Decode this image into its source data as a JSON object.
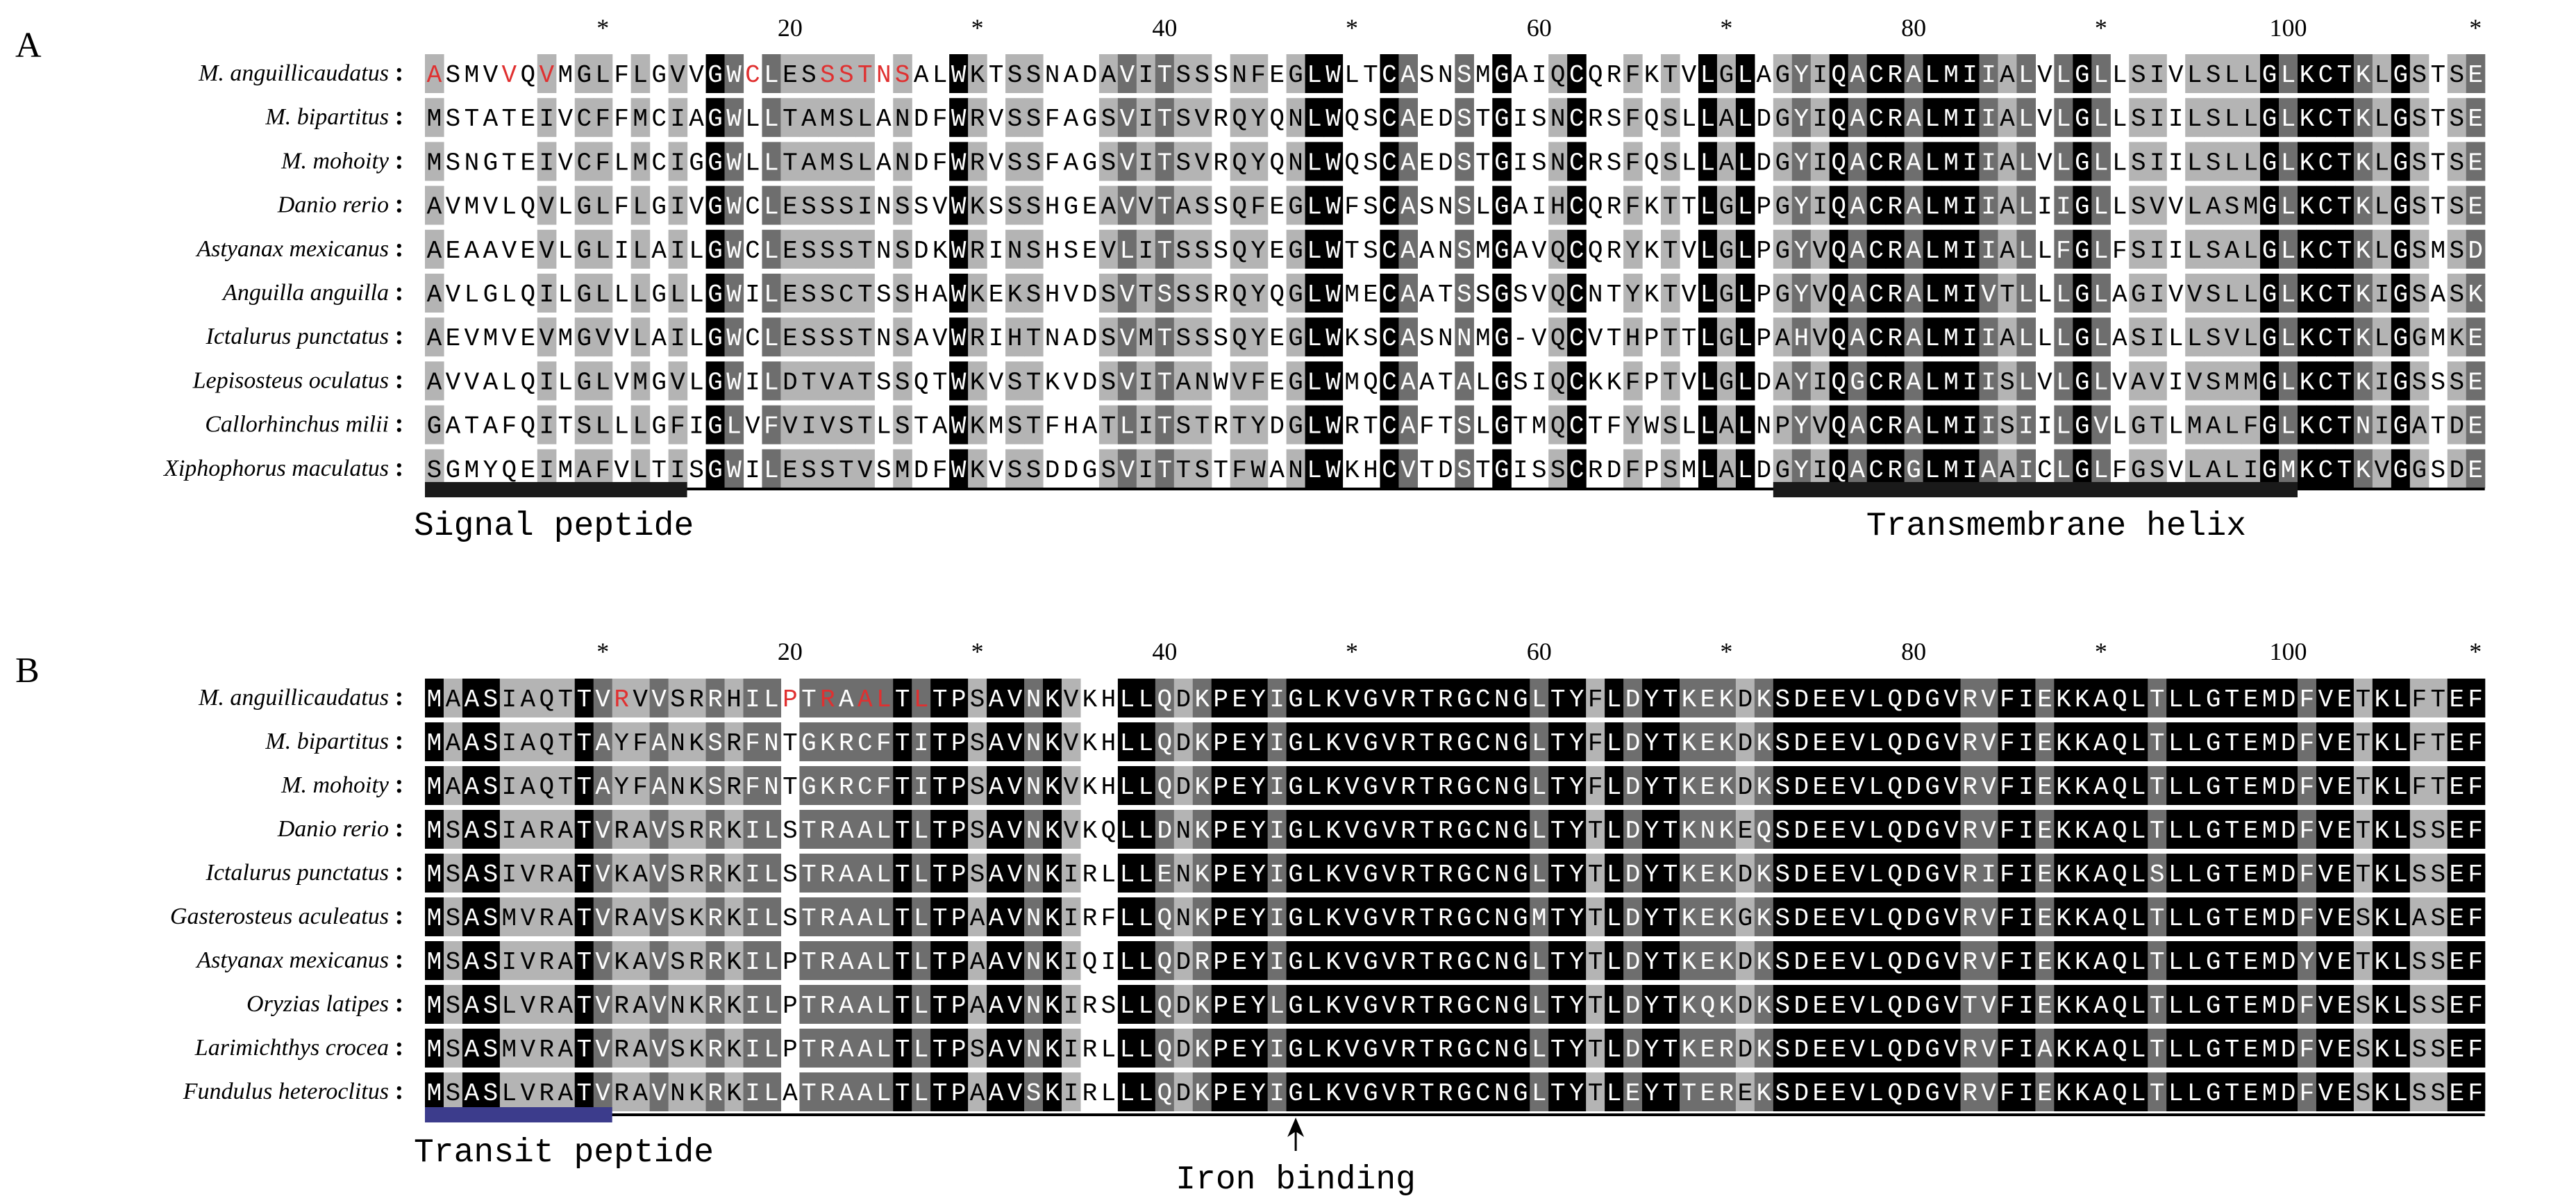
{
  "panels": [
    {
      "id": "A",
      "label": "A",
      "ruler": [
        "*",
        "20",
        "*",
        "40",
        "*",
        "60",
        "*",
        "80",
        "*",
        "100",
        "*"
      ],
      "rows": [
        {
          "species": "M. anguillicaudatus",
          "seq": "ASMVVQVMGLFLGVVGWCLESSSTNSALWKTSSNADAVITSSSNFEGLWLTCASNSMGAIQCQRFKTVLGLAGYIQACRALMIIALVLGLLSIVLSLLGLKCTKLGSTSE",
          "red": [
            0,
            4,
            6,
            17,
            21,
            22,
            23,
            24,
            25
          ]
        },
        {
          "species": "M. bipartitus",
          "seq": "MSTATEIVCFFMCIAGWLLTAMSLANDFWRVSSFAGSVITSVRQYQNLWQSCAEDSTGISNCRSFQSLLALDGYIQACRALMIIALVLGLLSIILSLLGLKCTKLGSTSE",
          "red": []
        },
        {
          "species": "M. mohoity",
          "seq": "MSNGTEIVCFLMCIGGWLLTAMSLANDFWRVSSFAGSVITSVRQYQNLWQSCAEDSTGISNCRSFQSLLALDGYIQACRALMIIALVLGLLSIILSLLGLKCTKLGSTSE",
          "red": []
        },
        {
          "species": "Danio rerio",
          "seq": "AVMVLQVLGLFLGIVGWCLESSSINSSVWKSSSHGEAVVTASSQFEGLWFSCASNSLGAIHCQRFKTTLGLPGYIQACRALMIIALIIGLLSVVLASMGLKCTKLGSTSE",
          "red": []
        },
        {
          "species": "Astyanax mexicanus",
          "seq": "AEAAVEVLGLILAILGWCLESSSTNSDKWRINSHSEVLITSSSQYEGLWTSCAANSMGAVQCQRYKTVLGLPGYVQACRALMIIALLFGLFSIILSALGLKCTKLGSMSD",
          "red": []
        },
        {
          "species": "Anguilla anguilla",
          "seq": "AVLGLQILGLLLGLLGWILESSCTSSHAWKEKSHVDSVTSSSRQYQGLWMECAATSSGSVQCNTYKTVLGLPGYVQACRALMIVTLLLGLAGIVVSLLGLKCTKIGSASK",
          "red": []
        },
        {
          "species": "Ictalurus punctatus",
          "seq": "AEVMVEVMGVVLAILGWCLESSSTNSAVWRIHTNADSVMTSSSQYEGLWKSCASNNMG-VQCVTHPTTLGLPAHVQACRALMIIALLLGLASILLSVLGLKCTKLGGMKE",
          "red": []
        },
        {
          "species": "Lepisosteus oculatus",
          "seq": "AVVALQILGLVMGVLGWILDTVATSSQTWKVSTKVDSVITANWVFEGLWMQCAATALGSIQCKKFPTVLGLDAYIQGCRALMIISLVLGLVAVIVSMMGLKCTKIGSSSE",
          "red": []
        },
        {
          "species": "Callorhinchus milii",
          "seq": "GATAFQITSLLLGFIGLVFVIVSTLSTAWKMSTFHATLITSTRTYDGLWRTCAFTSLGTMQCTFYWSLLALNPYVQACRALMIISIILGVLGTLMALFGLKCTNIGATDE",
          "red": []
        },
        {
          "species": "Xiphophorus maculatus",
          "seq": "SGMYQEIMAFVLTISGWILESSTVSMDFWKVSSDDGSVITTSTFWANLWKHCVTDSTGISSCRDFPSMLALDGYIQACRGLMIAAICLGLFGSVLALIGMKCTKVGGSDE",
          "red": []
        }
      ],
      "features": [
        {
          "label": "Signal peptide",
          "start": 0,
          "end": 14,
          "color": "#1a1a1a"
        },
        {
          "label": "Transmembrane helix",
          "start": 72,
          "end": 100,
          "color": "#1a1a1a"
        }
      ],
      "baseline_end": 110
    },
    {
      "id": "B",
      "label": "B",
      "ruler": [
        "*",
        "20",
        "*",
        "40",
        "*",
        "60",
        "*",
        "80",
        "*",
        "100",
        "*"
      ],
      "rows": [
        {
          "species": "M. anguillicaudatus",
          "seq": "MAASIAQTTVRVVSRRHILPTRAALTLTPSAVNKVKHLLQDKPEYIGLKVGVRTRGCNGLTYFLDYTKEKDKSDEEVLQDGVRVFIEKKAQLTLLGTEMDFVETKLFTEF",
          "red": [
            10,
            19,
            21,
            23,
            24,
            26
          ]
        },
        {
          "species": "M. bipartitus",
          "seq": "MAASIAQTTAYFANKSRFNTGKRCFTITPSAVNKVKHLLQDKPEYIGLKVGVRTRGCNGLTYFLDYTKEKDKSDEEVLQDGVRVFIEKKAQLTLLGTEMDFVETKLFTEF",
          "red": []
        },
        {
          "species": "M. mohoity",
          "seq": "MAASIAQTTAYFANKSRFNTGKRCFTITPSAVNKVKHLLQDKPEYIGLKVGVRTRGCNGLTYFLDYTKEKDKSDEEVLQDGVRVFIEKKAQLTLLGTEMDFVETKLFTEF",
          "red": []
        },
        {
          "species": "Danio rerio",
          "seq": "MSASIARATVRAVSRRKILSTRAALTLTPSAVNKVKQLLDNKPEYIGLKVGVRTRGCNGLTYTLDYTKNKEQSDEEVLQDGVRVFIEKKAQLTLLGTEMDFVETKLSSEF",
          "red": []
        },
        {
          "species": "Ictalurus punctatus",
          "seq": "MSASIVRATVKAVSRRKILSTRAALTLTPSAVNKIRLLLENKPEYIGLKVGVRTRGCNGLTYTLDYTKEKDKSDEEVLQDGVRIFIEKKAQLSLLGTEMDFVETKLSSEF",
          "red": []
        },
        {
          "species": "Gasterosteus aculeatus",
          "seq": "MSASMVRATVRAVSKRKILSTRAALTLTPAAVNKIRFLLQNKPEYIGLKVGVRTRGCNGMTYTLDYTKEKGKSDEEVLQDGVRVFIEKKAQLTLLGTEMDFVESKLASEF",
          "red": []
        },
        {
          "species": "Astyanax mexicanus",
          "seq": "MSASIVRATVKAVSRRKILPTRAALTLTPAAVNKIQILLQDRPEYIGLKVGVRTRGCNGLTYTLDYTKEKDKSDEEVLQDGVRVFIEKKAQLTLLGTEMDYVETKLSSEF",
          "red": []
        },
        {
          "species": "Oryzias latipes",
          "seq": "MSASLVRATVRAVNKRKILPTRAALTLTPAAVNKIRSLLQDKPEYLGLKVGVRTRGCNGLTYTLDYTKQKDKSDEEVLQDGVTVFIEKKAQLTLLGTEMDFVESKLSSEF",
          "red": []
        },
        {
          "species": "Larimichthys crocea",
          "seq": "MSASMVRATVRAVSKRKILPTRAALTLTPSAVNKIRLLLQDKPEYIGLKVGVRTRGCNGLTYTLDYTKERDKSDEEVLQDGVRVFIAKKAQLTLLGTEMDFVESKLSSEF",
          "red": []
        },
        {
          "species": "Fundulus heteroclitus",
          "seq": "MSASLVRATVRAVNKRKILATRAALTLTPAAVSKIRLLLQDKPEYIGLKVGVRTRGCNGLTYTLEYTTEREKSDEEVLQDGVRVFIEKKAQLTLLGTEMDFVESKLSSEF",
          "red": []
        }
      ],
      "features": [
        {
          "label": "Transit peptide",
          "start": 0,
          "end": 10,
          "color": "#3c3c8c"
        }
      ],
      "annotations": [
        {
          "label": "Iron binding",
          "residue": 46
        }
      ],
      "baseline_end": 110
    }
  ],
  "colors": {
    "identical": "#000000",
    "high": "#6e6e6e",
    "medium": "#b4b4b4",
    "text_on_dark": "#ffffff",
    "text_on_light": "#000000",
    "highlight_red": "#e03030"
  }
}
